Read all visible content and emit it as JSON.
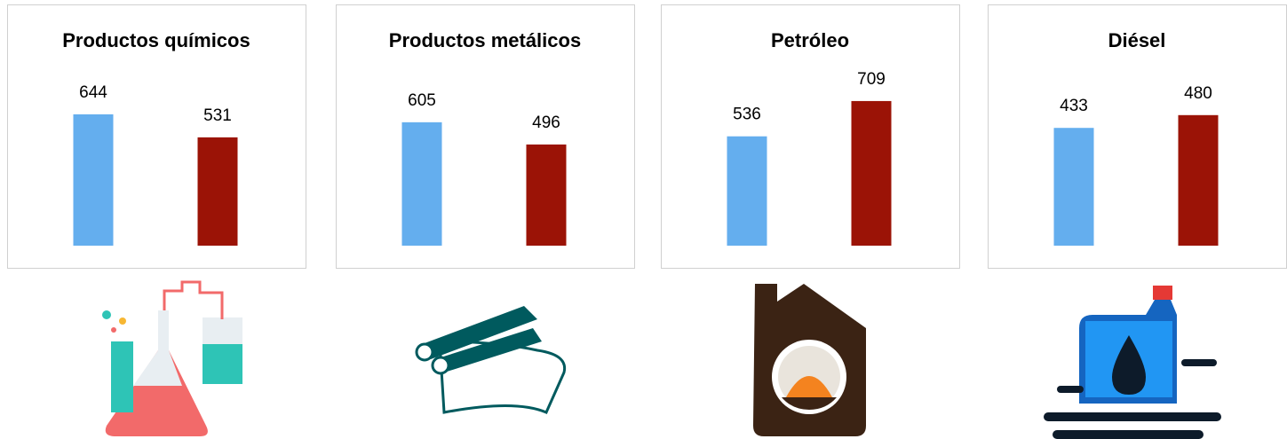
{
  "chart_data": [
    {
      "type": "bar",
      "title": "Productos químicos",
      "values": [
        644,
        531
      ],
      "colors": [
        "#64aeee",
        "#9b1306"
      ],
      "ylim": [
        0,
        1000
      ]
    },
    {
      "type": "bar",
      "title": "Productos metálicos",
      "values": [
        605,
        496
      ],
      "colors": [
        "#64aeee",
        "#9b1306"
      ],
      "ylim": [
        0,
        1000
      ]
    },
    {
      "type": "bar",
      "title": "Petróleo",
      "values": [
        536,
        709
      ],
      "colors": [
        "#64aeee",
        "#9b1306"
      ],
      "ylim": [
        0,
        1000
      ]
    },
    {
      "type": "bar",
      "title": "Diésel",
      "values": [
        433,
        480
      ],
      "colors": [
        "#64aeee",
        "#9b1306"
      ],
      "ylim": [
        0,
        750
      ]
    }
  ]
}
